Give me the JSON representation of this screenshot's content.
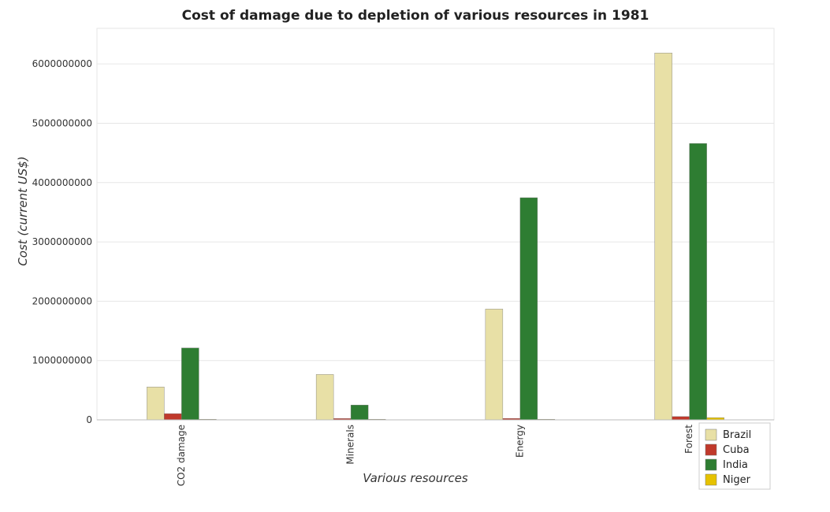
{
  "chart_data": {
    "type": "bar",
    "title": "Cost of damage due to depletion of various resources in 1981",
    "xlabel": "Various resources",
    "ylabel": "Cost (current US$)",
    "categories": [
      "CO2 damage",
      "Minerals",
      "Energy",
      "Forest"
    ],
    "series": [
      {
        "name": "Brazil",
        "color": "#e8e0a6",
        "values": [
          555000000,
          765000000,
          1868000000,
          6185000000
        ]
      },
      {
        "name": "Cuba",
        "color": "#c0392b",
        "values": [
          105000000,
          22000000,
          24000000,
          55000000
        ]
      },
      {
        "name": "India",
        "color": "#2e7d32",
        "values": [
          1212000000,
          250000000,
          3745000000,
          4660000000
        ]
      },
      {
        "name": "Niger",
        "color": "#e6c200",
        "values": [
          4000000,
          1000000,
          1000000,
          36000000
        ]
      }
    ],
    "ylim": [
      0,
      6600000000
    ],
    "yticks": [
      "0",
      "1000000000",
      "2000000000",
      "3000000000",
      "4000000000",
      "5000000000",
      "6000000000"
    ],
    "grid": true,
    "legend_position": "bottom-right"
  }
}
